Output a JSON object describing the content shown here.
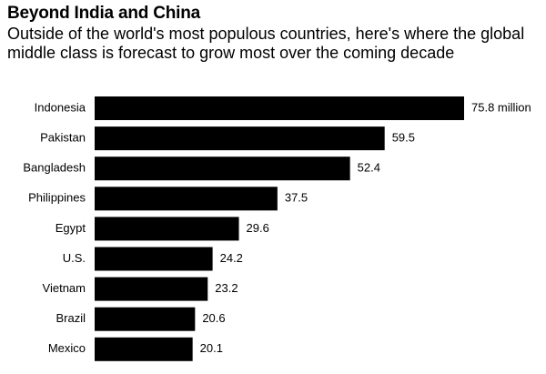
{
  "chart_data": {
    "type": "bar",
    "orientation": "horizontal",
    "title": "Beyond India and China",
    "subtitle": "Outside of the world's most populous countries, here's where the global middle class is forecast to grow most over the coming decade",
    "categories": [
      "Indonesia",
      "Pakistan",
      "Bangladesh",
      "Philippines",
      "Egypt",
      "U.S.",
      "Vietnam",
      "Brazil",
      "Mexico"
    ],
    "values": [
      75.8,
      59.5,
      52.4,
      37.5,
      29.6,
      24.2,
      23.2,
      20.6,
      20.1
    ],
    "value_labels": [
      "75.8 million",
      "59.5",
      "52.4",
      "37.5",
      "29.6",
      "24.2",
      "23.2",
      "20.6",
      "20.1"
    ],
    "xlabel": "",
    "ylabel": "",
    "xlim": [
      0,
      75.8
    ],
    "grid": false,
    "legend": "none",
    "bar_color": "#000000"
  }
}
